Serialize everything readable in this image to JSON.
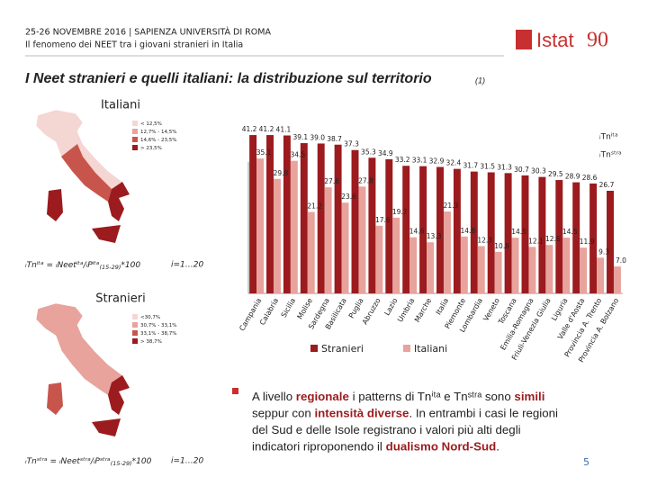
{
  "header": {
    "event": "25-26 NOVEMBRE 2016 | SAPIENZA UNIVERSITÀ DI ROMA",
    "subtitle": "Il fenomeno dei NEET tra i giovani stranieri in Italia",
    "logo": "Istat",
    "logo_mark": "90"
  },
  "title": {
    "text": "I Neet stranieri e quelli italiani: la distribuzione sul territorio",
    "note": "(1)"
  },
  "maps": [
    {
      "title": "Italiani",
      "legend": [
        "< 12,5%",
        "12,7% - 14,5%",
        "14,6% - 23,5%",
        "> 23,5%"
      ],
      "colors": [
        "#f4d6d3",
        "#e8a39c",
        "#c8554c",
        "#9b1b1e"
      ],
      "formula": [
        {
          "text": "ᵢTnⁱᵗᵃ = ᵢNeetⁱᵗᵃ/ᵢPⁱᵗᵃ",
          "sub": false
        },
        {
          "text": "(15-29)",
          "sub": true
        },
        {
          "text": "*100",
          "sub": false
        }
      ],
      "index": "i=1…20"
    },
    {
      "title": "Stranieri",
      "legend": [
        "<30,7%",
        "30,7% - 33,1%",
        "33,1% - 38,7%",
        "> 38,7%"
      ],
      "colors": [
        "#f4d6d3",
        "#e8a39c",
        "#c8554c",
        "#9b1b1e"
      ],
      "formula": [
        {
          "text": "ᵢTnˢᵗʳᵃ = ᵢNeetˢᵗʳᵃ/ᵢPˢᵗʳᵃ",
          "sub": false
        },
        {
          "text": "(15-29)",
          "sub": true
        },
        {
          "text": "*100",
          "sub": false
        }
      ],
      "index": "i=1…20"
    }
  ],
  "chart_data": {
    "type": "bar",
    "categories": [
      "Campania",
      "Calabria",
      "Sicilia",
      "Molise",
      "Sardegna",
      "Basilicata",
      "Puglia",
      "Abruzzo",
      "Lazio",
      "Umbria",
      "Marche",
      "Italia",
      "Piemonte",
      "Lombardia",
      "Veneto",
      "Toscana",
      "Emilia-Romagna",
      "Friuli-Venezia Giulia",
      "Liguria",
      "Valle d'Aosta",
      "Provincia A. Trento",
      "Provincia A. Bolzano"
    ],
    "series": [
      {
        "name": "Stranieri",
        "color": "#9b1b1e",
        "values": [
          41.2,
          41.2,
          41.1,
          39.1,
          39.0,
          38.7,
          37.3,
          35.3,
          34.9,
          33.2,
          33.1,
          32.9,
          32.4,
          31.7,
          31.5,
          31.3,
          30.7,
          30.3,
          29.5,
          28.9,
          28.6,
          26.7
        ],
        "value_labels": [
          "41.2",
          "41.2",
          "41.1",
          "39.1",
          "39.0",
          "38.7",
          "37.3",
          "35.3",
          "34.9",
          "33.2",
          "33.1",
          "32.9",
          "32.4",
          "31.7",
          "31.5",
          "31.3",
          "30.7",
          "30.3",
          "29.5",
          "28.9",
          "28.6",
          "26.7"
        ]
      },
      {
        "name": "Italiani",
        "color": "#e8a39c",
        "values": [
          35.1,
          29.8,
          34.5,
          21.2,
          27.6,
          23.6,
          27.8,
          17.6,
          19.7,
          14.6,
          13.3,
          21.3,
          14.8,
          12.3,
          10.8,
          14.5,
          12.1,
          12.6,
          14.5,
          11.9,
          9.3,
          7.0
        ],
        "value_labels": [
          "35.1",
          "29.8",
          "34.5",
          "21.2",
          "27.6",
          "23.6",
          "27.8",
          "17.6",
          "19.7",
          "14.6",
          "13.3",
          "21.3",
          "14.8",
          "12.3",
          "10.8",
          "14.5",
          "12.1",
          "12.6",
          "14.5",
          "11.9",
          "9.3",
          "7.0"
        ]
      }
    ],
    "ylim": [
      0,
      45
    ],
    "annotations": [
      "ᵢTnⁱᵗᵃ",
      "ᵢTnˢᵗʳᵃ"
    ]
  },
  "bullet": [
    [
      {
        "text": "A livello ",
        "em": false
      },
      {
        "text": "regionale",
        "em": true
      },
      {
        "text": " i patterns di Tnⁱᵗᵃ e Tnˢᵗʳᵃ sono ",
        "em": false
      },
      {
        "text": "simili",
        "em": true
      }
    ],
    [
      {
        "text": "seppur con ",
        "em": false
      },
      {
        "text": "intensità diverse",
        "em": true
      },
      {
        "text": ". In entrambi i casi le regioni",
        "em": false
      }
    ],
    [
      {
        "text": "del Sud e delle Isole registrano i valori più alti degli",
        "em": false
      }
    ],
    [
      {
        "text": "indicatori riproponendo il ",
        "em": false
      },
      {
        "text": "dualismo Nord-Sud",
        "em": true
      },
      {
        "text": ".",
        "em": false
      }
    ]
  ],
  "page_number": "5"
}
